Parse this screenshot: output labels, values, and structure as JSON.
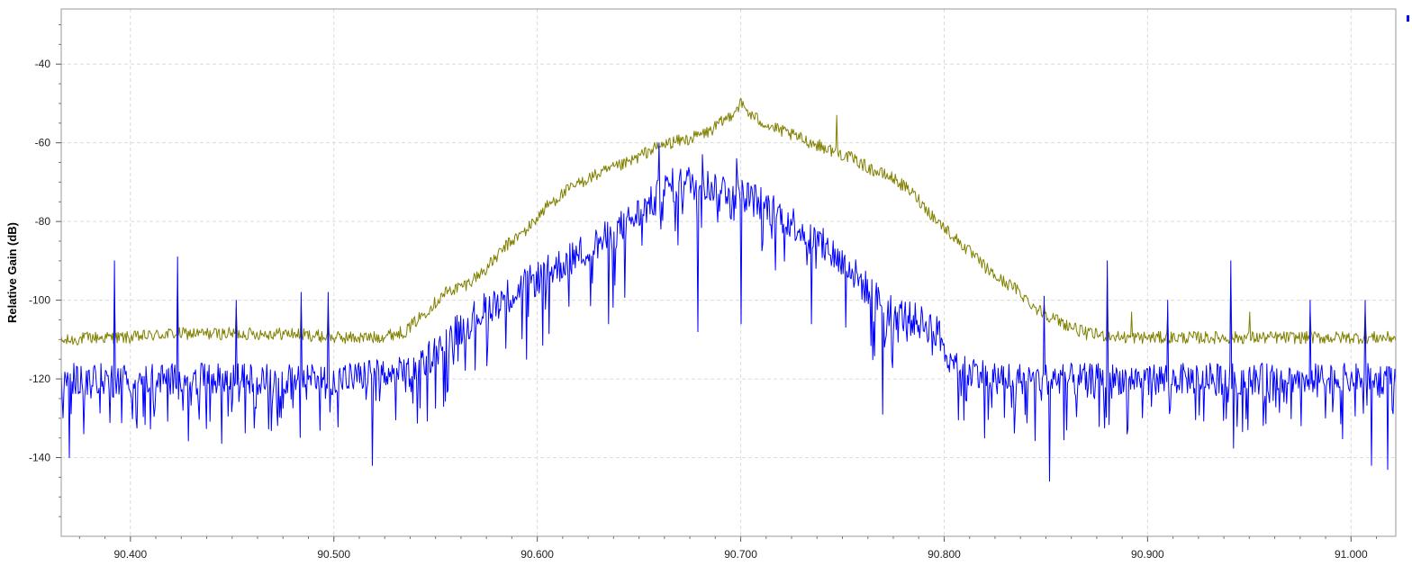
{
  "chart_data": {
    "type": "line",
    "ylabel": "Relative Gain (dB)",
    "xlabel": "",
    "title": "",
    "xlim": [
      90.366,
      91.022
    ],
    "ylim": [
      -160,
      -26
    ],
    "x_ticks": [
      90.4,
      90.5,
      90.6,
      90.7,
      90.8,
      90.9,
      91.0
    ],
    "x_tick_labels": [
      "90.400",
      "90.500",
      "90.600",
      "90.700",
      "90.800",
      "90.900",
      "91.000"
    ],
    "y_ticks": [
      -40,
      -60,
      -80,
      -100,
      -120,
      -140
    ],
    "y_tick_labels": [
      "-40",
      "-60",
      "-80",
      "-100",
      "-120",
      "-140"
    ],
    "grid": true,
    "legend": "top-right",
    "series": [
      {
        "color": "#808000",
        "x": [
          90.366,
          90.38,
          90.4,
          90.42,
          90.44,
          90.46,
          90.48,
          90.5,
          90.52,
          90.535,
          90.545,
          90.555,
          90.565,
          90.575,
          90.585,
          90.595,
          90.605,
          90.615,
          90.625,
          90.635,
          90.645,
          90.655,
          90.665,
          90.675,
          90.685,
          90.695,
          90.7,
          90.705,
          90.715,
          90.725,
          90.735,
          90.745,
          90.755,
          90.765,
          90.775,
          90.785,
          90.795,
          90.805,
          90.815,
          90.825,
          90.835,
          90.845,
          90.855,
          90.87,
          90.89,
          90.91,
          90.93,
          90.95,
          90.97,
          90.99,
          91.01,
          91.022
        ],
        "values": [
          -110.5,
          -109.5,
          -109.5,
          -108.5,
          -108.5,
          -108.5,
          -108.5,
          -109.5,
          -109.5,
          -108.0,
          -103.0,
          -98.0,
          -96.0,
          -92.0,
          -86.0,
          -82.0,
          -76.0,
          -72.0,
          -69.0,
          -67.0,
          -65.0,
          -62.0,
          -60.0,
          -59.0,
          -57.0,
          -53.0,
          -50.0,
          -53.0,
          -56.0,
          -58.0,
          -60.0,
          -62.0,
          -64.0,
          -67.0,
          -69.0,
          -73.0,
          -79.0,
          -84.0,
          -89.0,
          -94.0,
          -97.0,
          -102.0,
          -105.0,
          -108.5,
          -109.5,
          -109.5,
          -109.5,
          -109.5,
          -109.5,
          -109.5,
          -109.5,
          -109.5
        ],
        "spikes": [
          [
            90.392,
            -97
          ],
          [
            90.423,
            -93
          ],
          [
            90.452,
            -102
          ],
          [
            90.484,
            -101
          ],
          [
            90.497,
            -101
          ],
          [
            90.747,
            -53
          ],
          [
            90.849,
            -101
          ],
          [
            90.88,
            -94
          ],
          [
            90.892,
            -103
          ],
          [
            90.91,
            -103
          ],
          [
            90.941,
            -94
          ],
          [
            90.95,
            -103
          ],
          [
            90.98,
            -103
          ],
          [
            91.007,
            -103
          ]
        ]
      },
      {
        "color": "#0000ff",
        "x": [
          90.366,
          90.4,
          90.45,
          90.5,
          90.54,
          90.555,
          90.565,
          90.575,
          90.585,
          90.595,
          90.605,
          90.615,
          90.625,
          90.635,
          90.645,
          90.655,
          90.665,
          90.675,
          90.685,
          90.695,
          90.705,
          90.715,
          90.725,
          90.735,
          90.745,
          90.755,
          90.765,
          90.775,
          90.785,
          90.795,
          90.805,
          90.82,
          90.84,
          90.87,
          90.9,
          90.95,
          91.0,
          91.022
        ],
        "values": [
          -120,
          -120,
          -120,
          -120,
          -118,
          -110,
          -106,
          -102,
          -99,
          -96,
          -93,
          -90,
          -87,
          -84,
          -80,
          -76,
          -71,
          -70,
          -71,
          -72,
          -74,
          -77,
          -80,
          -84,
          -88,
          -93,
          -99,
          -103,
          -105,
          -107,
          -115,
          -119,
          -120,
          -120,
          -120,
          -120,
          -120,
          -120
        ],
        "spikes": [
          [
            90.392,
            -90
          ],
          [
            90.423,
            -89
          ],
          [
            90.452,
            -100
          ],
          [
            90.484,
            -98
          ],
          [
            90.497,
            -98
          ],
          [
            90.66,
            -60
          ],
          [
            90.681,
            -63
          ],
          [
            90.698,
            -64
          ],
          [
            90.849,
            -99
          ],
          [
            90.88,
            -90
          ],
          [
            90.91,
            -100
          ],
          [
            90.941,
            -90
          ],
          [
            90.98,
            -100
          ],
          [
            91.007,
            -100
          ]
        ],
        "dips": [
          [
            90.37,
            -140
          ],
          [
            90.519,
            -142
          ],
          [
            90.635,
            -106
          ],
          [
            90.679,
            -108
          ],
          [
            90.7,
            -106
          ],
          [
            90.735,
            -106
          ],
          [
            90.77,
            -129
          ],
          [
            90.82,
            -135
          ],
          [
            90.852,
            -146
          ],
          [
            90.86,
            -133
          ],
          [
            90.89,
            -134
          ],
          [
            91.01,
            -142
          ],
          [
            91.018,
            -143
          ]
        ]
      }
    ]
  }
}
